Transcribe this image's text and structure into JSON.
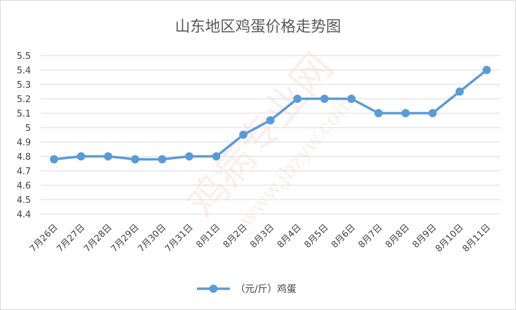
{
  "chart_data": {
    "type": "line",
    "title": "山东地区鸡蛋价格走势图",
    "xlabel": "",
    "ylabel": "",
    "categories": [
      "7月26日",
      "7月27日",
      "7月28日",
      "7月29日",
      "7月30日",
      "7月31日",
      "8月1日",
      "8月2日",
      "8月3日",
      "8月4日",
      "8月5日",
      "8月6日",
      "8月7日",
      "8月8日",
      "8月9日",
      "8月10日",
      "8月11日"
    ],
    "series": [
      {
        "name": "（元/斤）鸡蛋",
        "values": [
          4.78,
          4.8,
          4.8,
          4.78,
          4.78,
          4.8,
          4.8,
          4.95,
          5.05,
          5.2,
          5.2,
          5.2,
          5.1,
          5.1,
          5.1,
          5.25,
          5.4
        ]
      }
    ],
    "ylim": [
      4.4,
      5.5
    ],
    "yticks": [
      "4.4",
      "4.5",
      "4.6",
      "4.7",
      "4.8",
      "4.9",
      "5",
      "5.1",
      "5.2",
      "5.3",
      "5.4",
      "5.5"
    ],
    "grid": true,
    "legend_position": "bottom",
    "color": "#5b9bd5"
  },
  "watermark": {
    "brand": "鸡病专业网",
    "url": "www.jbzyw.com"
  }
}
